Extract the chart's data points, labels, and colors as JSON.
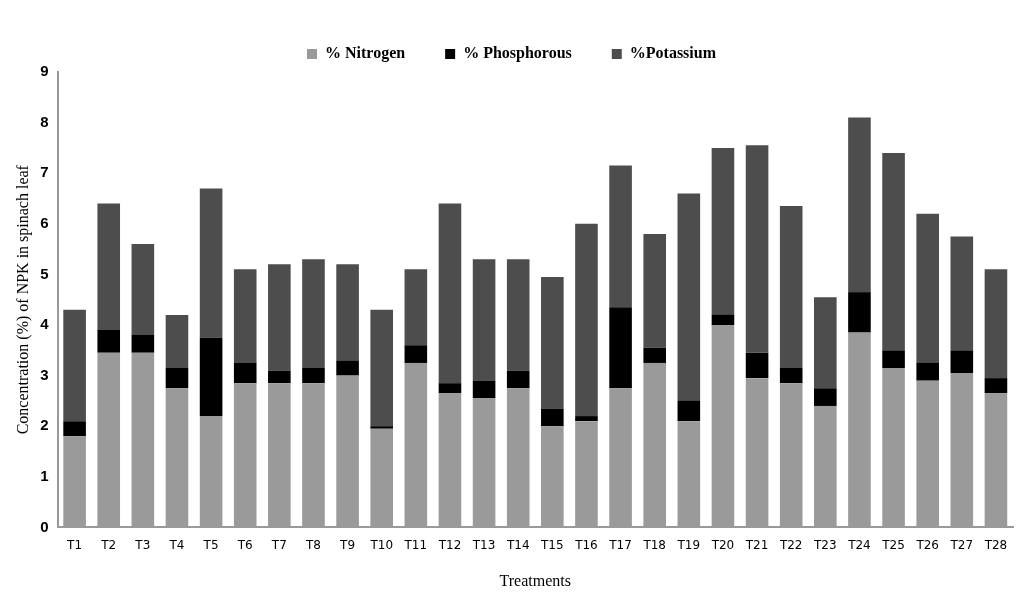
{
  "chart_data": {
    "type": "bar",
    "stacked": true,
    "xlabel": "Treatments",
    "ylabel": "Concentration (%) of NPK in spinach leaf",
    "categories": [
      "T1",
      "T2",
      "T3",
      "T4",
      "T5",
      "T6",
      "T7",
      "T8",
      "T9",
      "T10",
      "T11",
      "T12",
      "T13",
      "T14",
      "T15",
      "T16",
      "T17",
      "T18",
      "T19",
      "T20",
      "T21",
      "T22",
      "T23",
      "T24",
      "T25",
      "T26",
      "T27",
      "T28"
    ],
    "series": [
      {
        "name": "% Nitrogen",
        "color": "#9a9a9a",
        "values": [
          1.8,
          3.45,
          3.45,
          2.75,
          2.2,
          2.85,
          2.85,
          2.85,
          3.0,
          1.95,
          3.25,
          2.65,
          2.55,
          2.75,
          2.0,
          2.1,
          2.75,
          3.25,
          2.1,
          4.0,
          2.95,
          2.85,
          2.4,
          3.85,
          3.15,
          2.9,
          3.05,
          2.65
        ]
      },
      {
        "name": "% Phosphorous",
        "color": "#000000",
        "values": [
          0.3,
          0.45,
          0.35,
          0.4,
          1.55,
          0.4,
          0.25,
          0.3,
          0.3,
          0.05,
          0.35,
          0.2,
          0.35,
          0.35,
          0.35,
          0.1,
          1.6,
          0.3,
          0.4,
          0.2,
          0.5,
          0.3,
          0.35,
          0.8,
          0.35,
          0.35,
          0.45,
          0.3
        ]
      },
      {
        "name": "%Potassium",
        "color": "#4d4d4d",
        "values": [
          2.2,
          2.5,
          1.8,
          1.05,
          2.95,
          1.85,
          2.1,
          2.15,
          1.9,
          2.3,
          1.5,
          3.55,
          2.4,
          2.2,
          2.6,
          3.8,
          2.8,
          2.25,
          4.1,
          3.3,
          4.1,
          3.2,
          1.8,
          3.45,
          3.9,
          2.95,
          2.25,
          2.15
        ]
      }
    ],
    "ylim": [
      0,
      9
    ],
    "yticks": [
      0,
      1,
      2,
      3,
      4,
      5,
      6,
      7,
      8,
      9
    ],
    "grid": false,
    "legend": "top"
  }
}
